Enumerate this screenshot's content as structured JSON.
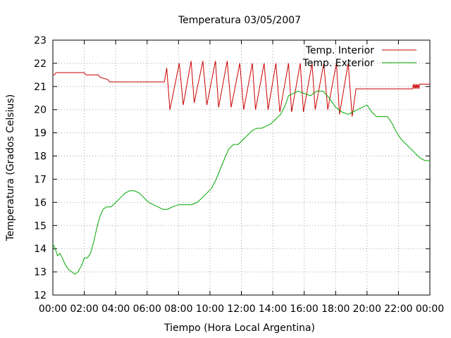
{
  "chart_data": {
    "type": "line",
    "title": "Temperatura 03/05/2007",
    "xlabel": "Tiempo (Hora Local Argentina)",
    "ylabel": "Temperatura (Grados Celsius)",
    "xlim": [
      0,
      24
    ],
    "ylim": [
      12,
      23
    ],
    "x_ticks": [
      0,
      2,
      4,
      6,
      8,
      10,
      12,
      14,
      16,
      18,
      20,
      22,
      24
    ],
    "x_tick_labels": [
      "00:00",
      "02:00",
      "04:00",
      "06:00",
      "08:00",
      "10:00",
      "12:00",
      "14:00",
      "16:00",
      "18:00",
      "20:00",
      "22:00",
      "00:00"
    ],
    "y_ticks": [
      12,
      13,
      14,
      15,
      16,
      17,
      18,
      19,
      20,
      21,
      22,
      23
    ],
    "y_tick_labels": [
      "12",
      "13",
      "14",
      "15",
      "16",
      "17",
      "18",
      "19",
      "20",
      "21",
      "22",
      "23"
    ],
    "grid": true,
    "legend_position": "top-right",
    "series": [
      {
        "name": "Temp. Interior",
        "color": "#cc0000",
        "x": [
          0,
          0.1,
          0.2,
          2.0,
          2.1,
          2.9,
          3.0,
          3.5,
          3.6,
          7.1,
          7.25,
          7.45,
          8.05,
          8.3,
          8.8,
          9.0,
          9.55,
          9.8,
          10.35,
          10.55,
          11.1,
          11.35,
          11.9,
          12.15,
          12.7,
          12.9,
          13.45,
          13.7,
          14.2,
          14.45,
          15.0,
          15.2,
          15.75,
          15.95,
          16.5,
          16.7,
          17.25,
          17.5,
          18.05,
          18.25,
          18.8,
          19.05,
          19.3,
          22.9,
          22.95,
          23.0,
          23.05,
          23.1,
          23.15,
          23.2,
          23.25,
          23.3,
          23.35,
          23.4,
          24.0
        ],
        "y": [
          21.5,
          21.5,
          21.6,
          21.6,
          21.5,
          21.5,
          21.4,
          21.3,
          21.2,
          21.2,
          21.8,
          20.0,
          22.0,
          20.2,
          22.1,
          20.3,
          22.1,
          20.2,
          22.1,
          20.1,
          22.1,
          20.1,
          22.0,
          20.0,
          22.0,
          20.0,
          22.0,
          20.0,
          22.0,
          19.9,
          22.0,
          19.9,
          22.0,
          19.9,
          22.0,
          20.0,
          22.0,
          20.0,
          22.0,
          19.8,
          22.0,
          19.7,
          20.9,
          20.9,
          21.1,
          20.9,
          21.1,
          20.9,
          21.1,
          20.9,
          21.1,
          20.9,
          21.1,
          21.1,
          21.1
        ]
      },
      {
        "name": "Temp. Exterior",
        "color": "#00aa00",
        "x": [
          0,
          0.15,
          0.3,
          0.45,
          0.6,
          0.8,
          1.0,
          1.2,
          1.4,
          1.6,
          1.85,
          2.0,
          2.2,
          2.4,
          2.6,
          2.8,
          3.0,
          3.2,
          3.4,
          3.7,
          4.0,
          4.3,
          4.6,
          4.9,
          5.2,
          5.5,
          5.8,
          6.1,
          6.4,
          6.7,
          7.0,
          7.3,
          7.6,
          8.0,
          8.4,
          8.8,
          9.2,
          9.5,
          9.8,
          10.1,
          10.4,
          10.7,
          11.0,
          11.2,
          11.5,
          11.8,
          12.1,
          12.4,
          12.7,
          13.0,
          13.3,
          13.6,
          13.9,
          14.2,
          14.5,
          14.8,
          15.0,
          15.3,
          15.6,
          16.0,
          16.4,
          16.8,
          17.2,
          17.6,
          18.0,
          18.4,
          18.8,
          19.1,
          19.4,
          19.7,
          20.0,
          20.3,
          20.6,
          21.0,
          21.3,
          21.6,
          21.9,
          22.2,
          22.5,
          22.8,
          23.1,
          23.4,
          23.7,
          24.0
        ],
        "y": [
          14.2,
          14.0,
          13.7,
          13.8,
          13.6,
          13.3,
          13.1,
          13.0,
          12.9,
          13.0,
          13.3,
          13.6,
          13.6,
          13.8,
          14.3,
          14.9,
          15.4,
          15.7,
          15.8,
          15.8,
          16.0,
          16.2,
          16.4,
          16.5,
          16.5,
          16.4,
          16.2,
          16.0,
          15.9,
          15.8,
          15.7,
          15.7,
          15.8,
          15.9,
          15.9,
          15.9,
          16.0,
          16.2,
          16.4,
          16.6,
          17.0,
          17.5,
          18.0,
          18.3,
          18.5,
          18.5,
          18.7,
          18.9,
          19.1,
          19.2,
          19.2,
          19.3,
          19.4,
          19.6,
          19.8,
          20.2,
          20.6,
          20.7,
          20.8,
          20.7,
          20.6,
          20.8,
          20.8,
          20.5,
          20.1,
          19.9,
          19.8,
          19.9,
          20.0,
          20.1,
          20.2,
          19.9,
          19.7,
          19.7,
          19.7,
          19.4,
          19.0,
          18.7,
          18.5,
          18.3,
          18.1,
          17.9,
          17.8,
          17.8
        ]
      }
    ]
  }
}
